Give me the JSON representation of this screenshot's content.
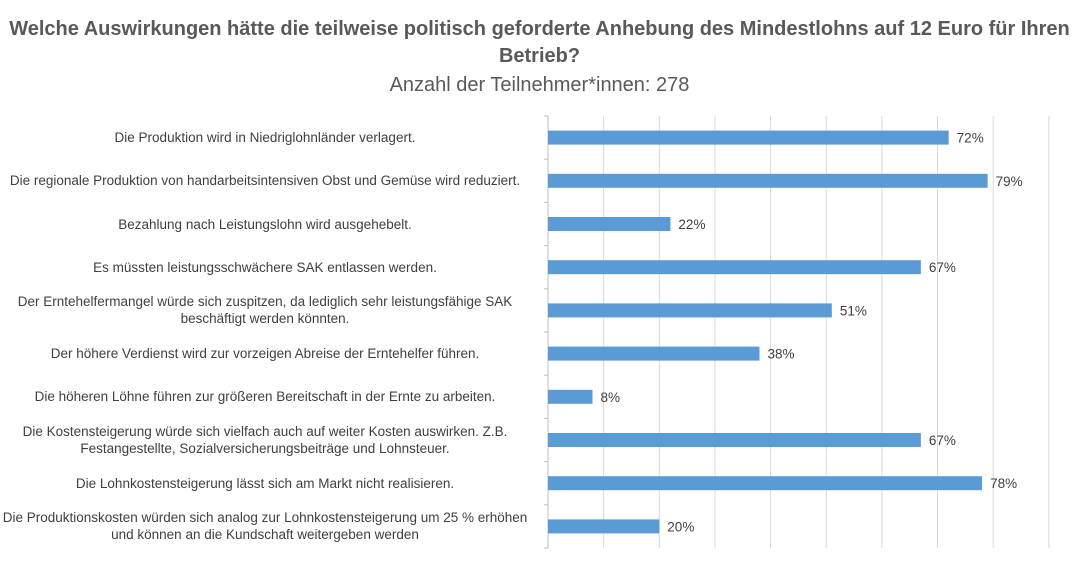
{
  "chart_data": {
    "type": "bar",
    "orientation": "horizontal",
    "title": "Welche Auswirkungen hätte die teilweise politisch geforderte Anhebung des Mindestlohns auf 12 Euro für Ihren Betrieb?",
    "subtitle": "Anzahl der Teilnehmer*innen: 278",
    "categories": [
      "Die Produktion wird in Niedriglohnländer verlagert.",
      "Die regionale Produktion von handarbeitsintensiven Obst und Gemüse wird reduziert.",
      "Bezahlung nach Leistungslohn wird ausgehebelt.",
      "Es müssten leistungsschwächere SAK entlassen werden.",
      "Der Erntehelfermangel würde sich zuspitzen, da lediglich sehr leistungsfähige SAK beschäftigt werden könnten.",
      "Der höhere Verdienst wird zur vorzeigen Abreise der Erntehelfer führen.",
      "Die höheren Löhne führen zur größeren Bereitschaft in der Ernte zu arbeiten.",
      "Die Kostensteigerung würde sich vielfach auch auf weiter Kosten auswirken. Z.B. Festangestellte, Sozialversicherungsbeiträge und Lohnsteuer.",
      "Die Lohnkostensteigerung lässt sich am Markt nicht realisieren.",
      "Die Produktionskosten würden sich analog zur Lohnkostensteigerung um 25 % erhöhen und können an die Kundschaft weitergeben werden"
    ],
    "values": [
      72,
      79,
      22,
      67,
      51,
      38,
      8,
      67,
      78,
      20
    ],
    "data_labels": [
      "72%",
      "79%",
      "22%",
      "67%",
      "51%",
      "38%",
      "8%",
      "67%",
      "78%",
      "20%"
    ],
    "xlim": [
      0,
      90
    ],
    "grid": true,
    "bar_color": "#5b9bd5",
    "legend": "none"
  }
}
